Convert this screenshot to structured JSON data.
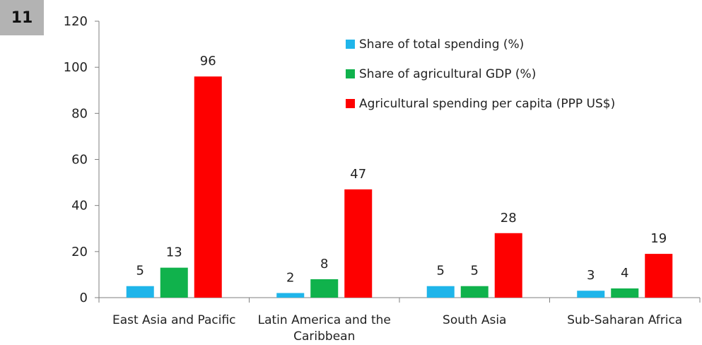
{
  "badge": {
    "label": "11"
  },
  "chart_data": {
    "type": "bar",
    "categories": [
      [
        "East Asia and Pacific"
      ],
      [
        "Latin America and the",
        "Caribbean"
      ],
      [
        "South Asia"
      ],
      [
        "Sub-Saharan Africa"
      ]
    ],
    "series": [
      {
        "name": "Share of total spending (%)",
        "color": "#1fb5ea",
        "values": [
          5,
          2,
          5,
          3
        ]
      },
      {
        "name": "Share of agricultural GDP (%)",
        "color": "#10b24c",
        "values": [
          13,
          8,
          5,
          4
        ]
      },
      {
        "name": "Agricultural spending per capita (PPP US$)",
        "color": "#fe0000",
        "values": [
          96,
          47,
          28,
          19
        ]
      }
    ],
    "ylim": [
      0,
      120
    ],
    "yticks": [
      0,
      20,
      40,
      60,
      80,
      100,
      120
    ],
    "legend_position": "top-right",
    "grid": false,
    "data_labels": true
  }
}
